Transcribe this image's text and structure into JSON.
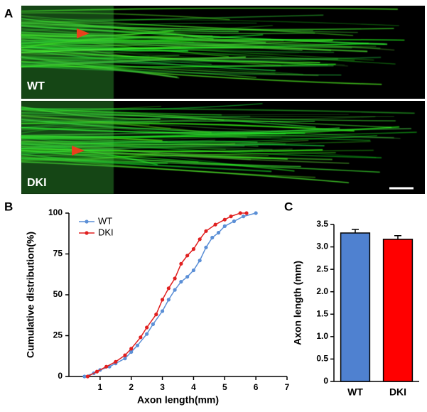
{
  "panels": {
    "a": "A",
    "b": "B",
    "c": "C"
  },
  "images": [
    {
      "label": "WT"
    },
    {
      "label": "DKI"
    }
  ],
  "chart_data": [
    {
      "type": "line",
      "xlabel": "Axon length(mm)",
      "ylabel": "Cumulative distribution(%)",
      "xlim": [
        0,
        7
      ],
      "xticks": [
        1,
        2,
        3,
        4,
        5,
        6,
        7
      ],
      "ylim": [
        0,
        100
      ],
      "yticks": [
        0,
        25,
        50,
        75,
        100
      ],
      "legend": "top-left",
      "series": [
        {
          "name": "WT",
          "color": "#5b8fd6",
          "x": [
            0.5,
            0.8,
            1.0,
            1.3,
            1.5,
            1.8,
            2.0,
            2.2,
            2.5,
            2.7,
            3.0,
            3.2,
            3.4,
            3.6,
            3.8,
            4.0,
            4.2,
            4.4,
            4.6,
            4.8,
            5.0,
            5.3,
            5.6,
            6.0
          ],
          "values": [
            0,
            2,
            4,
            6,
            8,
            11,
            15,
            19,
            26,
            32,
            40,
            47,
            53,
            58,
            61,
            65,
            71,
            79,
            85,
            88,
            92,
            95,
            98,
            100
          ]
        },
        {
          "name": "DKI",
          "color": "#e02020",
          "x": [
            0.6,
            0.9,
            1.2,
            1.5,
            1.8,
            2.0,
            2.3,
            2.5,
            2.8,
            3.0,
            3.2,
            3.4,
            3.6,
            3.8,
            4.0,
            4.2,
            4.4,
            4.7,
            5.0,
            5.2,
            5.5,
            5.7
          ],
          "values": [
            0,
            3,
            6,
            9,
            13,
            17,
            24,
            30,
            38,
            47,
            54,
            60,
            69,
            74,
            78,
            84,
            89,
            93,
            96,
            98,
            100,
            100
          ]
        }
      ]
    },
    {
      "type": "bar",
      "ylabel": "Axon length (mm)",
      "categories": [
        "WT",
        "DKI"
      ],
      "values": [
        3.31,
        3.17
      ],
      "errors": [
        0.08,
        0.08
      ],
      "colors": [
        "#4f81d0",
        "#ff0000"
      ],
      "ylim": [
        0,
        3.5
      ],
      "yticks": [
        0,
        0.5,
        {
          "value": 1,
          "label": "1.0"
        },
        1.5,
        {
          "value": 2,
          "label": "2.0"
        },
        2.5,
        {
          "value": 3,
          "label": "3.0"
        },
        3.5
      ]
    }
  ]
}
